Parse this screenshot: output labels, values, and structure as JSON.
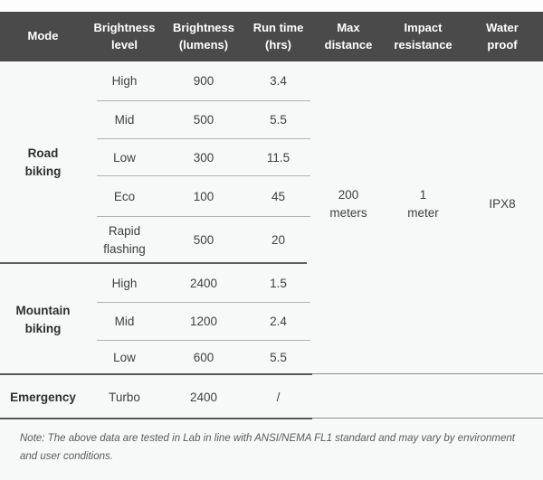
{
  "table": {
    "header": [
      "Mode",
      "Brightness\nlevel",
      "Brightness\n(lumens)",
      "Run time\n(hrs)",
      "Max\ndistance",
      "Impact\nresistance",
      "Water\nproof"
    ],
    "road": {
      "label": "Road\nbiking",
      "rows": [
        {
          "level": "High",
          "lumens": "900",
          "runtime": "3.4"
        },
        {
          "level": "Mid",
          "lumens": "500",
          "runtime": "5.5"
        },
        {
          "level": "Low",
          "lumens": "300",
          "runtime": "11.5"
        },
        {
          "level": "Eco",
          "lumens": "100",
          "runtime": "45"
        },
        {
          "level": "Rapid\nflashing",
          "lumens": "500",
          "runtime": "20"
        }
      ]
    },
    "mountain": {
      "label": "Mountain\nbiking",
      "rows": [
        {
          "level": "High",
          "lumens": "2400",
          "runtime": "1.5"
        },
        {
          "level": "Mid",
          "lumens": "1200",
          "runtime": "2.4"
        },
        {
          "level": "Low",
          "lumens": "600",
          "runtime": "5.5"
        }
      ]
    },
    "emergency": {
      "label": "Emergency",
      "row": {
        "level": "Turbo",
        "lumens": "2400",
        "runtime": "/"
      }
    },
    "shared": {
      "max_distance": "200\nmeters",
      "impact_resistance": "1\nmeter",
      "water_proof": "IPX8"
    },
    "note": "Note: The above data are tested in Lab in line with ANSI/NEMA FL1 standard and may vary by environment\nand user conditions."
  },
  "colors": {
    "header_bg": "#4a4a4a",
    "header_text": "#ffffff",
    "body_bg": "#f7f8f8",
    "body_text": "#3f3f3f",
    "row_divider": "#b3b3b3",
    "section_line": "#565656"
  },
  "chart_data": {
    "type": "table",
    "title": "Bike light mode specifications",
    "columns": [
      "Mode",
      "Brightness level",
      "Brightness (lumens)",
      "Run time (hrs)",
      "Max distance",
      "Impact resistance",
      "Water proof"
    ],
    "sections": [
      {
        "mode": "Road biking",
        "rows": [
          [
            "High",
            900,
            3.4
          ],
          [
            "Mid",
            500,
            5.5
          ],
          [
            "Low",
            300,
            11.5
          ],
          [
            "Eco",
            100,
            45
          ],
          [
            "Rapid flashing",
            500,
            20
          ]
        ]
      },
      {
        "mode": "Mountain biking",
        "rows": [
          [
            "High",
            2400,
            1.5
          ],
          [
            "Mid",
            1200,
            2.4
          ],
          [
            "Low",
            600,
            5.5
          ]
        ]
      },
      {
        "mode": "Emergency",
        "rows": [
          [
            "Turbo",
            2400,
            "/"
          ]
        ]
      }
    ],
    "shared_values": {
      "max_distance": "200 meters",
      "impact_resistance": "1 meter",
      "water_proof": "IPX8"
    },
    "note": "Note: The above data are tested in Lab in line with ANSI/NEMA FL1 standard and may vary by environment and user conditions."
  }
}
